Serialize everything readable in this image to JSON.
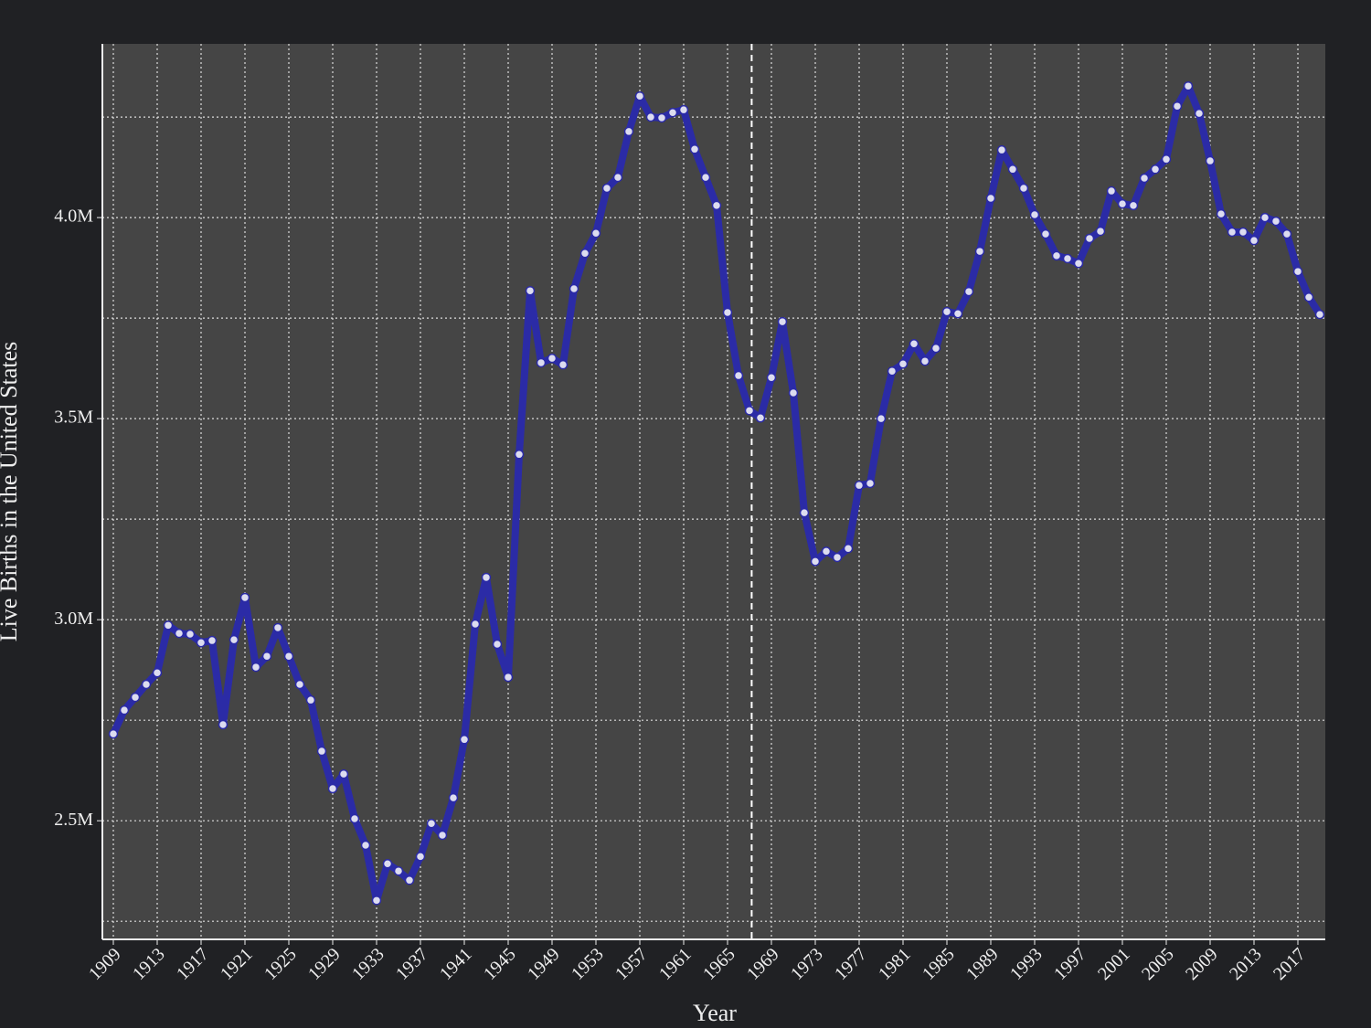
{
  "chart_data": {
    "type": "line",
    "x_label": "Year",
    "y_label": "Live Births in the United States",
    "color": "#2b2ba6",
    "x": [
      1909,
      1910,
      1911,
      1912,
      1913,
      1914,
      1915,
      1916,
      1917,
      1918,
      1919,
      1920,
      1921,
      1922,
      1923,
      1924,
      1925,
      1926,
      1927,
      1928,
      1929,
      1930,
      1931,
      1932,
      1933,
      1934,
      1935,
      1936,
      1937,
      1938,
      1939,
      1940,
      1941,
      1942,
      1943,
      1944,
      1945,
      1946,
      1947,
      1948,
      1949,
      1950,
      1951,
      1952,
      1953,
      1954,
      1955,
      1956,
      1957,
      1958,
      1959,
      1960,
      1961,
      1962,
      1963,
      1964,
      1965,
      1966,
      1967,
      1968,
      1969,
      1970,
      1971,
      1972,
      1973,
      1974,
      1975,
      1976,
      1977,
      1978,
      1979,
      1980,
      1981,
      1982,
      1983,
      1984,
      1985,
      1986,
      1987,
      1988,
      1989,
      1990,
      1991,
      1992,
      1993,
      1994,
      1995,
      1996,
      1997,
      1998,
      1999,
      2000,
      2001,
      2002,
      2003,
      2004,
      2005,
      2006,
      2007,
      2008,
      2009,
      2010,
      2011,
      2012,
      2013,
      2014,
      2015,
      2016,
      2017,
      2018,
      2019
    ],
    "values": [
      2716000,
      2775000,
      2807000,
      2839000,
      2868000,
      2986000,
      2966000,
      2964000,
      2943000,
      2948000,
      2739000,
      2950000,
      3055000,
      2882000,
      2909000,
      2980000,
      2909000,
      2839000,
      2800000,
      2673000,
      2580000,
      2616000,
      2505000,
      2439000,
      2302000,
      2393000,
      2375000,
      2352000,
      2411000,
      2493000,
      2464000,
      2557000,
      2702000,
      2989000,
      3105000,
      2939000,
      2857000,
      3411000,
      3818000,
      3639000,
      3650000,
      3634000,
      3823000,
      3911000,
      3961000,
      4073000,
      4100000,
      4214000,
      4302000,
      4250000,
      4248000,
      4261000,
      4268000,
      4170000,
      4100000,
      4030000,
      3764000,
      3607000,
      3520000,
      3502000,
      3602000,
      3741000,
      3564000,
      3266000,
      3145000,
      3170000,
      3155000,
      3177000,
      3334000,
      3339000,
      3500000,
      3618000,
      3636000,
      3686000,
      3643000,
      3675000,
      3766000,
      3761000,
      3816000,
      3916000,
      4048000,
      4168000,
      4120000,
      4073000,
      4007000,
      3959000,
      3905000,
      3898000,
      3886000,
      3948000,
      3966000,
      4066000,
      4034000,
      4030000,
      4098000,
      4120000,
      4145000,
      4277000,
      4327000,
      4259000,
      4141000,
      4009000,
      3964000,
      3964000,
      3943000,
      4000000,
      3991000,
      3959000,
      3866000,
      3802000,
      3759000
    ],
    "xlim": [
      1908,
      2019.5
    ],
    "xticks": [
      1909,
      1913,
      1917,
      1921,
      1925,
      1929,
      1933,
      1937,
      1941,
      1945,
      1949,
      1953,
      1957,
      1961,
      1965,
      1969,
      1973,
      1977,
      1981,
      1985,
      1989,
      1993,
      1997,
      2001,
      2005,
      2009,
      2013,
      2017
    ],
    "ylim": [
      2205000,
      4432000
    ],
    "yticks": [
      {
        "value": 2500000,
        "label": "2.5M"
      },
      {
        "value": 3000000,
        "label": "3.0M"
      },
      {
        "value": 3500000,
        "label": "3.5M"
      },
      {
        "value": 4000000,
        "label": "4.0M"
      }
    ],
    "y_minor_gridlines": [
      2250000,
      2750000,
      3250000,
      3750000,
      4250000
    ],
    "vline_x": 1967.2,
    "grid": true
  }
}
